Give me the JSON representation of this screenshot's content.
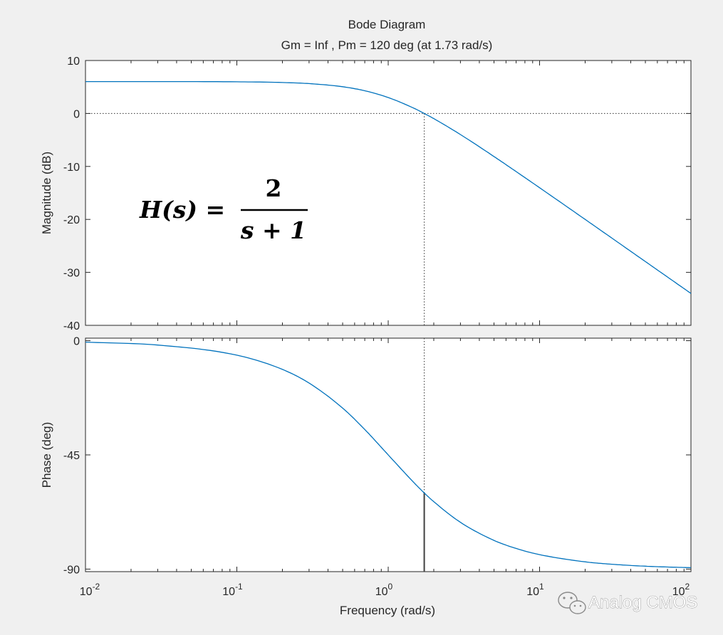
{
  "chart_data": [
    {
      "type": "line",
      "panel": "magnitude",
      "title": "Bode Diagram",
      "subtitle": "Gm = Inf ,  Pm = 120 deg (at 1.73 rad/s)",
      "xlabel": "",
      "ylabel": "Magnitude (dB)",
      "xscale": "log",
      "xlim": [
        0.01,
        100
      ],
      "ylim": [
        -40,
        10
      ],
      "yticks": [
        10,
        0,
        -10,
        -20,
        -30,
        -40
      ],
      "ytick_labels": [
        "10",
        "0",
        "-10",
        "-20",
        "-30",
        "-40"
      ],
      "grid": false,
      "zero_reference_line": {
        "y": 0,
        "style": "dotted"
      },
      "marker_line": {
        "x": 1.73,
        "style": "dotted"
      },
      "series": [
        {
          "color": "#0072bd",
          "x": [
            0.01,
            0.03,
            0.1,
            0.2,
            0.3,
            0.5,
            0.7,
            1,
            1.5,
            1.73,
            2,
            3,
            5,
            7,
            10,
            20,
            30,
            50,
            70,
            100
          ],
          "y": [
            6.02,
            6.02,
            5.98,
            5.85,
            5.64,
            5.05,
            4.29,
            3.01,
            0.91,
            0.0,
            -0.97,
            -3.98,
            -8.13,
            -10.97,
            -14.02,
            -20.0,
            -23.52,
            -27.96,
            -30.88,
            -33.98
          ]
        }
      ]
    },
    {
      "type": "line",
      "panel": "phase",
      "xlabel": "Frequency  (rad/s)",
      "ylabel": "Phase (deg)",
      "xscale": "log",
      "xlim": [
        0.01,
        100
      ],
      "xticks": [
        0.01,
        0.1,
        1,
        10,
        100
      ],
      "xtick_labels": [
        {
          "base": "10",
          "exp": "-2"
        },
        {
          "base": "10",
          "exp": "-1"
        },
        {
          "base": "10",
          "exp": "0"
        },
        {
          "base": "10",
          "exp": "1"
        },
        {
          "base": "10",
          "exp": "2"
        }
      ],
      "ylim": [
        -91,
        1
      ],
      "yticks": [
        0,
        -45,
        -90
      ],
      "ytick_labels": [
        "0",
        "-45",
        "-90"
      ],
      "grid": false,
      "marker_line": {
        "x": 1.73,
        "style": "dotted",
        "solid_segment_to": -60
      },
      "series": [
        {
          "color": "#0072bd",
          "x": [
            0.01,
            0.03,
            0.1,
            0.2,
            0.3,
            0.5,
            0.7,
            1,
            1.5,
            1.73,
            2,
            3,
            5,
            7,
            10,
            20,
            30,
            50,
            70,
            100
          ],
          "y": [
            -0.57,
            -1.72,
            -5.71,
            -11.31,
            -16.7,
            -26.57,
            -34.99,
            -45.0,
            -56.31,
            -60.0,
            -63.43,
            -71.57,
            -78.69,
            -81.87,
            -84.29,
            -87.14,
            -88.09,
            -88.85,
            -89.18,
            -89.43
          ]
        }
      ]
    }
  ],
  "annotation": {
    "lhs": "H(s) =",
    "numerator": "2",
    "denominator": "s + 1"
  },
  "watermark": {
    "text": "Analog CMOS",
    "icon": "wechat-icon"
  }
}
